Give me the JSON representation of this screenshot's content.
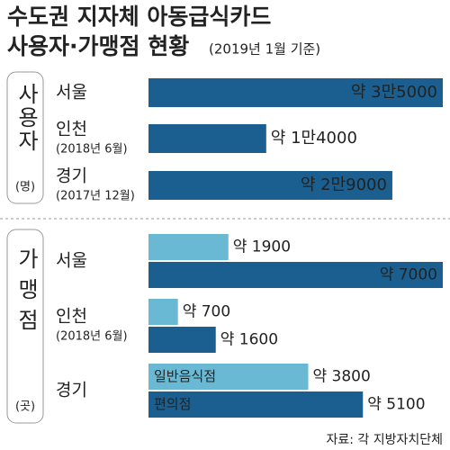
{
  "title": "수도권 지자체 아동급식카드",
  "subtitle": "사용자·가맹점 현황",
  "subtitle_note": "(2019년 1월 기준)",
  "source": "자료: 각 지방자치단체",
  "chart_data": [
    {
      "type": "bar",
      "section_label": "사용자",
      "unit": "(명)",
      "color": "#1a5f8f",
      "categories": [
        "서울",
        "인천",
        "경기"
      ],
      "category_notes": [
        null,
        "(2018년 6월)",
        "(2017년 12월)"
      ],
      "values": [
        35000,
        14000,
        29000
      ],
      "value_labels": [
        "약 3만5000",
        "약 1만4000",
        "약 2만9000"
      ]
    },
    {
      "type": "grouped_bar",
      "section_label": "가맹점",
      "unit": "(곳)",
      "categories": [
        "서울",
        "인천",
        "경기"
      ],
      "category_notes": [
        null,
        "(2018년 6월)",
        null
      ],
      "series": [
        {
          "name": "일반음식점",
          "color": "#6ab9d4",
          "values": [
            1900,
            700,
            3800
          ],
          "value_labels": [
            "약 1900",
            "약 700",
            "약 3800"
          ]
        },
        {
          "name": "편의점",
          "color": "#1a5f8f",
          "values": [
            7000,
            1600,
            5100
          ],
          "value_labels": [
            "약 7000",
            "약 1600",
            "약 5100"
          ]
        }
      ]
    }
  ]
}
